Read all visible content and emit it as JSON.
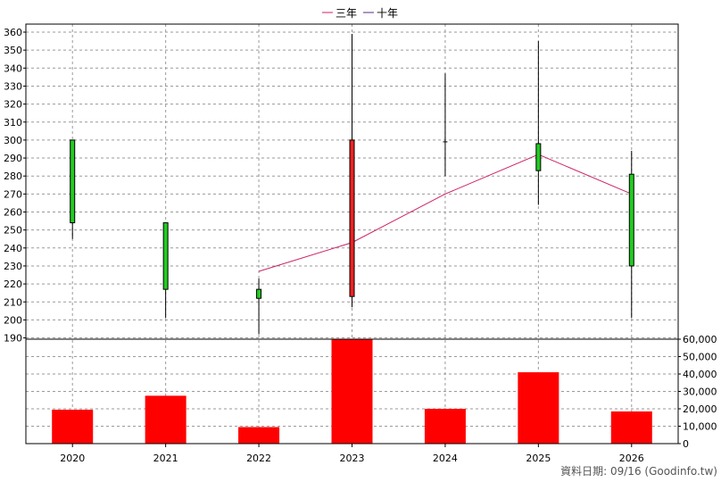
{
  "chart_data": {
    "type": "candlestick+bar",
    "legend": [
      {
        "name": "三年",
        "color": "#cc2266"
      },
      {
        "name": "十年",
        "color": "#5a2a8c"
      }
    ],
    "legend_placement": "top-center",
    "categories": [
      "2020",
      "2021",
      "2022",
      "2023",
      "2024",
      "2025",
      "2026"
    ],
    "price_axis": {
      "ylim": [
        185,
        365
      ],
      "ticks": [
        190,
        200,
        210,
        220,
        230,
        240,
        250,
        260,
        270,
        280,
        290,
        300,
        310,
        320,
        330,
        340,
        350,
        360
      ],
      "side": "left"
    },
    "volume_axis": {
      "ylim": [
        0,
        60000
      ],
      "ticks": [
        0,
        10000,
        20000,
        30000,
        40000,
        50000,
        60000
      ],
      "tick_labels": [
        "0",
        "10,000",
        "20,000",
        "30,000",
        "40,000",
        "50,000",
        "60,000"
      ],
      "side": "right"
    },
    "candles": [
      {
        "x": "2020",
        "open": 254,
        "close": 300,
        "high": 300,
        "low": 245,
        "color": "#22cc22"
      },
      {
        "x": "2021",
        "open": 217,
        "close": 254,
        "high": 254,
        "low": 201,
        "color": "#22cc22"
      },
      {
        "x": "2022",
        "open": 212,
        "close": 217,
        "high": 223,
        "low": 192,
        "color": "#22cc22"
      },
      {
        "x": "2023",
        "open": 213,
        "close": 300,
        "high": 359,
        "low": 207,
        "color": "#ee2222"
      },
      {
        "x": "2024",
        "open": 299,
        "close": 299,
        "high": 337,
        "low": 280,
        "color": "#000000"
      },
      {
        "x": "2025",
        "open": 283,
        "close": 298,
        "high": 355,
        "low": 264,
        "color": "#22cc22"
      },
      {
        "x": "2026",
        "open": 230,
        "close": 281,
        "high": 294,
        "low": 201,
        "color": "#22cc22"
      }
    ],
    "three_year_line": {
      "name": "三年",
      "x": [
        "2022",
        "2023",
        "2024",
        "2025",
        "2026"
      ],
      "values": [
        227,
        243,
        270,
        292,
        270
      ]
    },
    "volume": {
      "values": [
        19500,
        27500,
        9500,
        60000,
        20000,
        41000,
        18500
      ],
      "color": "#ff0000"
    },
    "grid": true
  },
  "footer": {
    "source_text": "資料日期: 09/16  (Goodinfo.tw)"
  }
}
